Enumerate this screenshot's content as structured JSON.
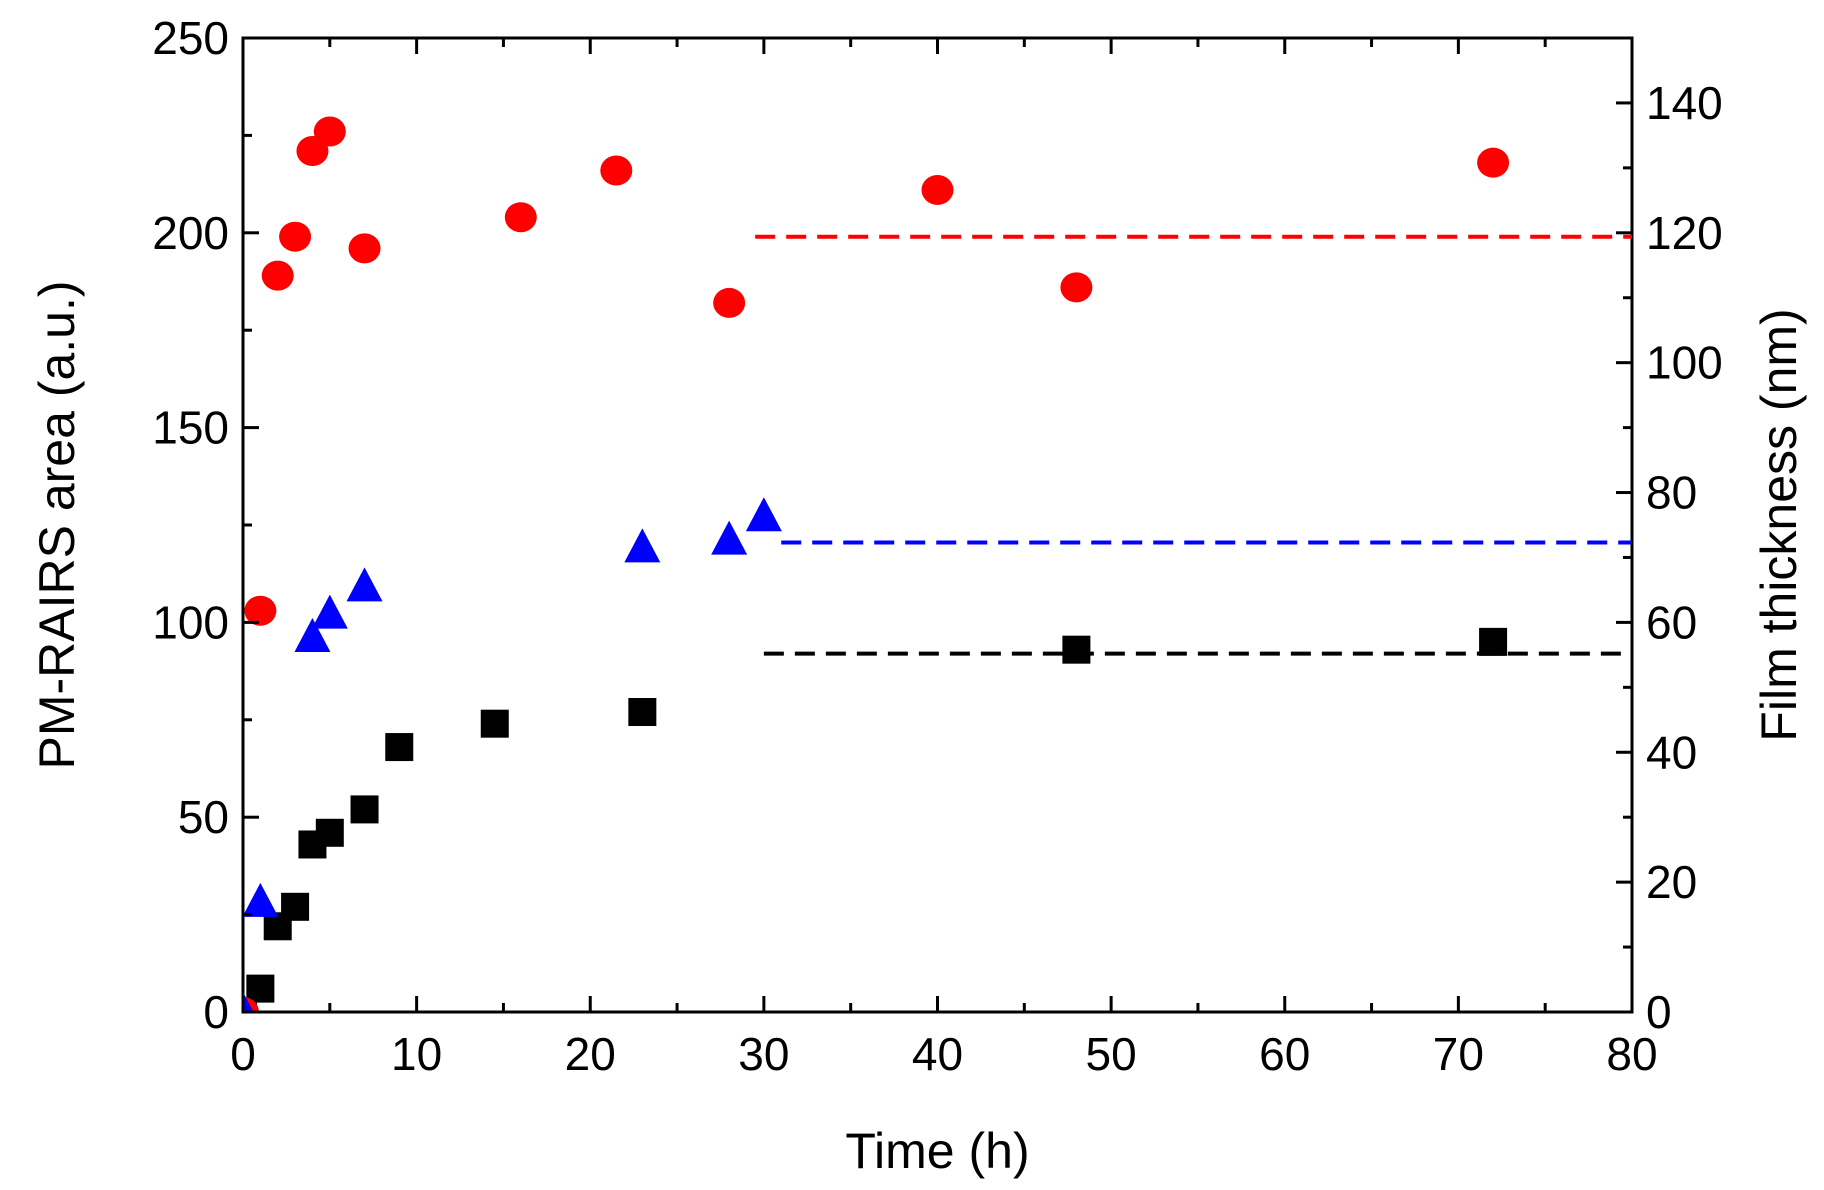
{
  "chart_data": {
    "type": "scatter",
    "title": "",
    "xlabel": "Time (h)",
    "ylabel": "PM-RAIRS area (a.u.)",
    "y2label": "Film thickness (nm)",
    "xlim": [
      0,
      80
    ],
    "ylim": [
      0,
      250
    ],
    "y2lim": [
      0,
      150
    ],
    "x_ticks": [
      0,
      10,
      20,
      30,
      40,
      50,
      60,
      70,
      80
    ],
    "y_ticks": [
      0,
      50,
      100,
      150,
      200,
      250
    ],
    "y2_ticks": [
      0,
      20,
      40,
      60,
      80,
      100,
      120,
      140
    ],
    "x_tick_labels": [
      "0",
      "10",
      "20",
      "30",
      "40",
      "50",
      "60",
      "70",
      "80"
    ],
    "y_tick_labels": [
      "0",
      "50",
      "100",
      "150",
      "200",
      "250"
    ],
    "y2_tick_labels": [
      "0",
      "20",
      "40",
      "60",
      "80",
      "100",
      "120",
      "140"
    ],
    "grid": false,
    "legend": "none",
    "series": [
      {
        "name": "black-squares",
        "marker": "square",
        "color": "#000000",
        "axis": "left",
        "x": [
          0,
          1,
          2,
          3,
          4,
          5,
          7,
          9,
          14.5,
          23,
          48,
          72
        ],
        "y": [
          0,
          6,
          22,
          27,
          43,
          46,
          52,
          68,
          74,
          77,
          93,
          95
        ]
      },
      {
        "name": "red-circles",
        "marker": "circle",
        "color": "#ff0000",
        "axis": "left",
        "x": [
          0,
          1,
          2,
          3,
          4,
          5,
          7,
          16,
          21.5,
          28,
          40,
          48,
          72
        ],
        "y": [
          0,
          103,
          189,
          199,
          221,
          226,
          196,
          204,
          216,
          182,
          211,
          186,
          218
        ]
      },
      {
        "name": "blue-triangles",
        "marker": "triangle",
        "color": "#0000ff",
        "axis": "left",
        "x": [
          0,
          1,
          4,
          5,
          7,
          23,
          28,
          30
        ],
        "y": [
          0,
          28,
          96,
          102,
          109,
          119,
          121,
          127
        ]
      }
    ],
    "reference_lines": [
      {
        "color": "#ff0000",
        "axis": "left",
        "y": 199,
        "x_start": 29.5,
        "x_end": 80
      },
      {
        "color": "#0000ff",
        "axis": "left",
        "y": 120.5,
        "x_start": 31,
        "x_end": 80
      },
      {
        "color": "#000000",
        "axis": "left",
        "y": 92,
        "x_start": 30,
        "x_end": 80
      }
    ]
  }
}
